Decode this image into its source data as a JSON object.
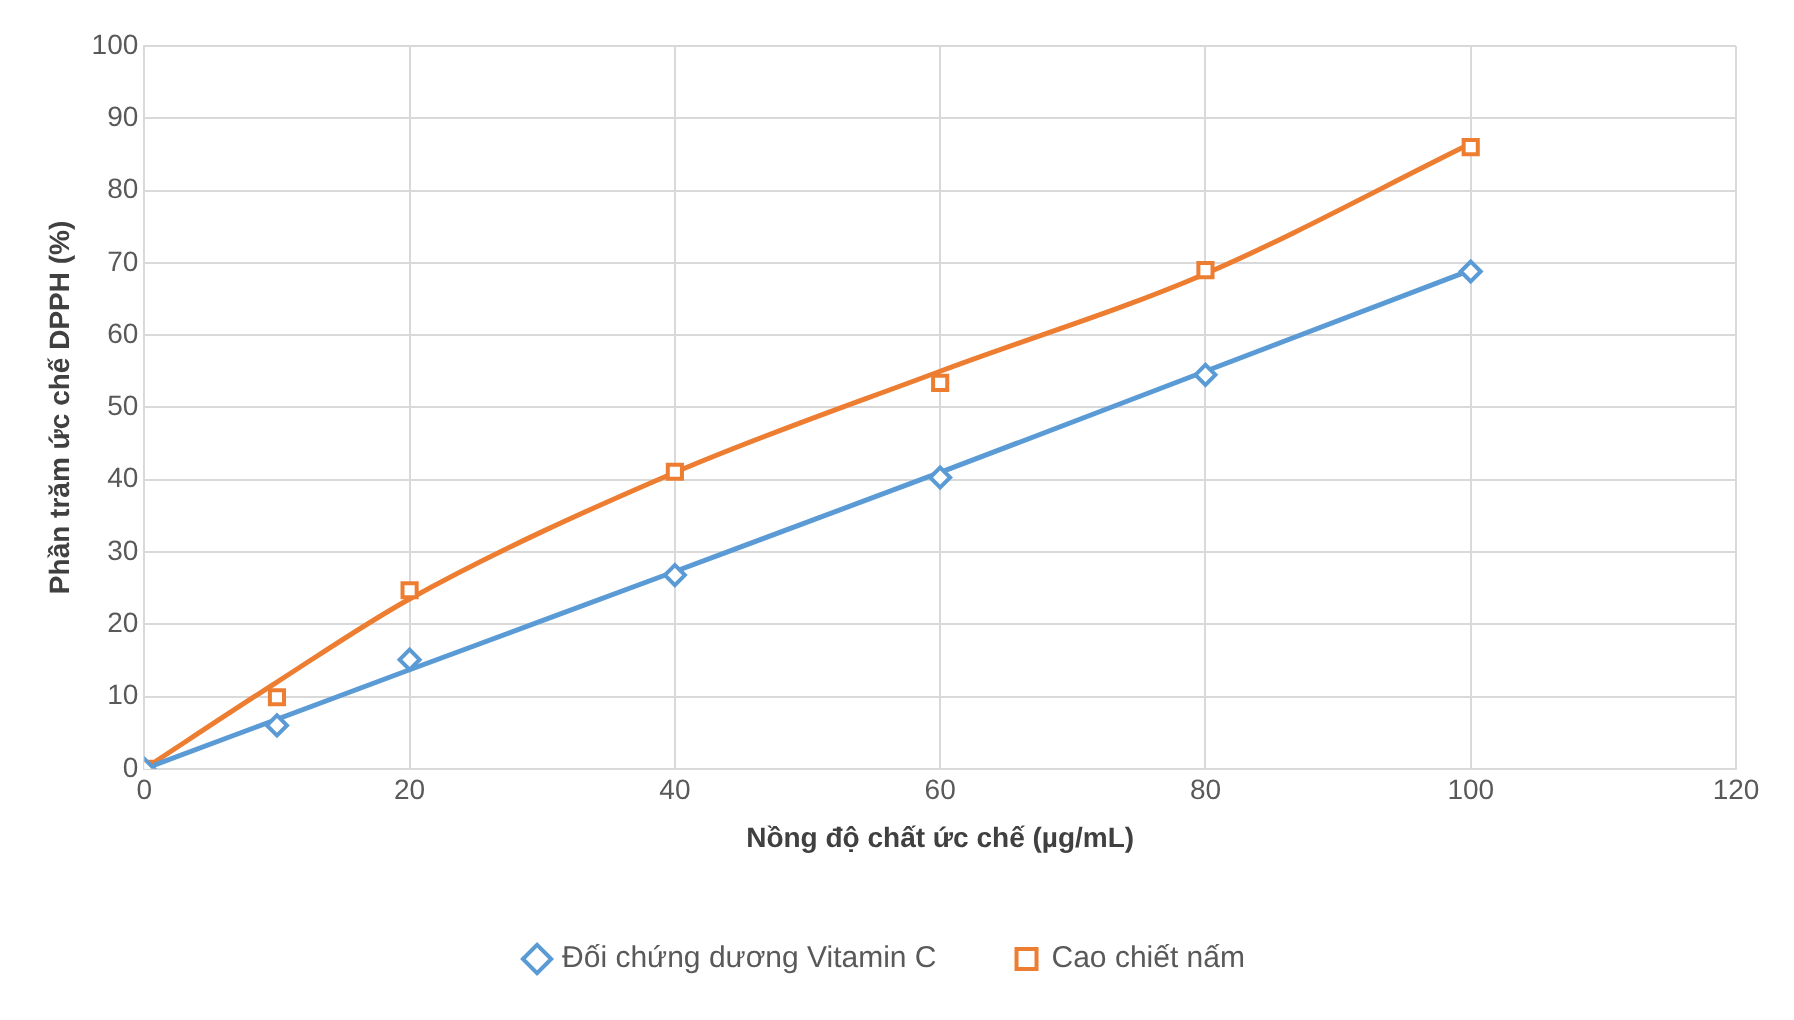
{
  "chart_data": {
    "type": "scatter",
    "xlabel": "Nồng độ chất ức chế (µg/mL)",
    "ylabel": "Phần trăm ức chế DPPH (%)",
    "xlim": [
      0,
      120
    ],
    "xticks": [
      0,
      20,
      40,
      60,
      80,
      100,
      120
    ],
    "ylim": [
      0,
      100
    ],
    "yticks": [
      0,
      10,
      20,
      30,
      40,
      50,
      60,
      70,
      80,
      90,
      100
    ],
    "grid": true,
    "legend": "bottom",
    "series": [
      {
        "name": "Đối chứng dương Vitamin C",
        "type": "scatter",
        "marker": "diamond",
        "color": "#5b9bd5",
        "x": [
          0,
          10,
          20,
          40,
          60,
          80,
          100
        ],
        "values": [
          0,
          6,
          15.1,
          26.8,
          40.3,
          54.5,
          68.8
        ]
      },
      {
        "name": "Cao chiết nấm",
        "type": "scatter",
        "marker": "square",
        "color": "#ed7d31",
        "x": [
          0,
          10,
          20,
          40,
          60,
          80,
          100
        ],
        "values": [
          0,
          9.9,
          24.7,
          41.1,
          53.4,
          69,
          86
        ]
      },
      {
        "type": "line",
        "marker": "none",
        "color": "#5b9bd5",
        "x": [
          0,
          20,
          40,
          60,
          80,
          100
        ],
        "values": [
          0,
          13.7,
          27.3,
          41,
          55,
          69
        ]
      },
      {
        "type": "line",
        "marker": "none",
        "color": "#ed7d31",
        "x": [
          0,
          10,
          20,
          40,
          60,
          80,
          100
        ],
        "values": [
          0,
          12,
          23.5,
          41,
          55,
          68.5,
          86.5
        ]
      }
    ]
  }
}
